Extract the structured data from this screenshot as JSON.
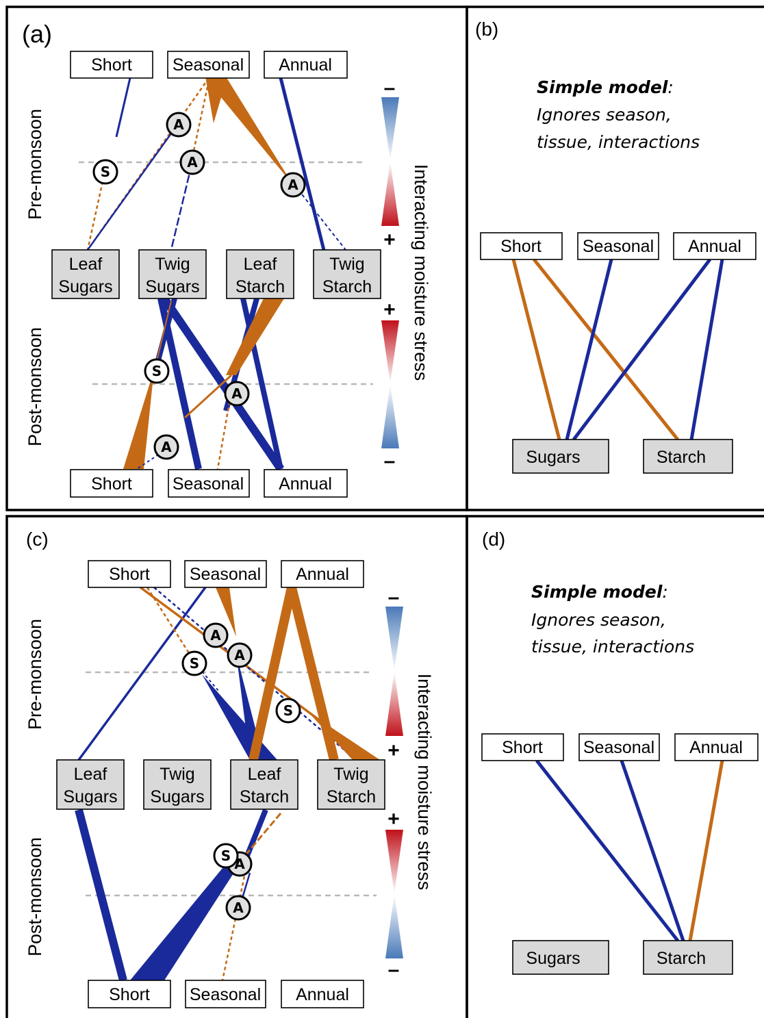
{
  "colors": {
    "blue": "#1a2a9a",
    "orange": "#c46a16",
    "gradient_red": "#c0111a",
    "gradient_blue": "#4a7ab8"
  },
  "panels": {
    "a": {
      "label": "(a)",
      "season_top": "Pre-monsoon",
      "season_bottom": "Post-monsoon",
      "stress_label": "Interacting moisture stress",
      "signs": [
        "–",
        "+",
        "+",
        "–"
      ],
      "top_nodes": [
        "Short",
        "Seasonal",
        "Annual"
      ],
      "middle_nodes": [
        {
          "line1": "Leaf",
          "line2": "Sugars"
        },
        {
          "line1": "Twig",
          "line2": "Sugars"
        },
        {
          "line1": "Leaf",
          "line2": "Starch"
        },
        {
          "line1": "Twig",
          "line2": "Starch"
        }
      ],
      "bottom_nodes": [
        "Short",
        "Seasonal",
        "Annual"
      ],
      "badges": [
        "S",
        "A",
        "A",
        "A",
        "S",
        "A",
        "A"
      ]
    },
    "b": {
      "label": "(b)",
      "title": "Simple model",
      "colon": ":",
      "subtitle_line1": "Ignores season,",
      "subtitle_line2": "tissue, interactions",
      "top_nodes": [
        "Short",
        "Seasonal",
        "Annual"
      ],
      "bottom_nodes": [
        "Sugars",
        "Starch"
      ]
    },
    "c": {
      "label": "(c)",
      "season_top": "Pre-monsoon",
      "season_bottom": "Post-monsoon",
      "stress_label": "Interacting moisture stress",
      "signs": [
        "–",
        "+",
        "+",
        "–"
      ],
      "top_nodes": [
        "Short",
        "Seasonal",
        "Annual"
      ],
      "middle_nodes": [
        {
          "line1": "Leaf",
          "line2": "Sugars"
        },
        {
          "line1": "Twig",
          "line2": "Sugars"
        },
        {
          "line1": "Leaf",
          "line2": "Starch"
        },
        {
          "line1": "Twig",
          "line2": "Starch"
        }
      ],
      "bottom_nodes": [
        "Short",
        "Seasonal",
        "Annual"
      ],
      "badges": [
        "A",
        "A",
        "S",
        "S",
        "S",
        "A",
        "A"
      ]
    },
    "d": {
      "label": "(d)",
      "title": "Simple model",
      "colon": ":",
      "subtitle_line1": "Ignores season,",
      "subtitle_line2": "tissue, interactions",
      "top_nodes": [
        "Short",
        "Seasonal",
        "Annual"
      ],
      "bottom_nodes": [
        "Sugars",
        "Starch"
      ]
    }
  }
}
